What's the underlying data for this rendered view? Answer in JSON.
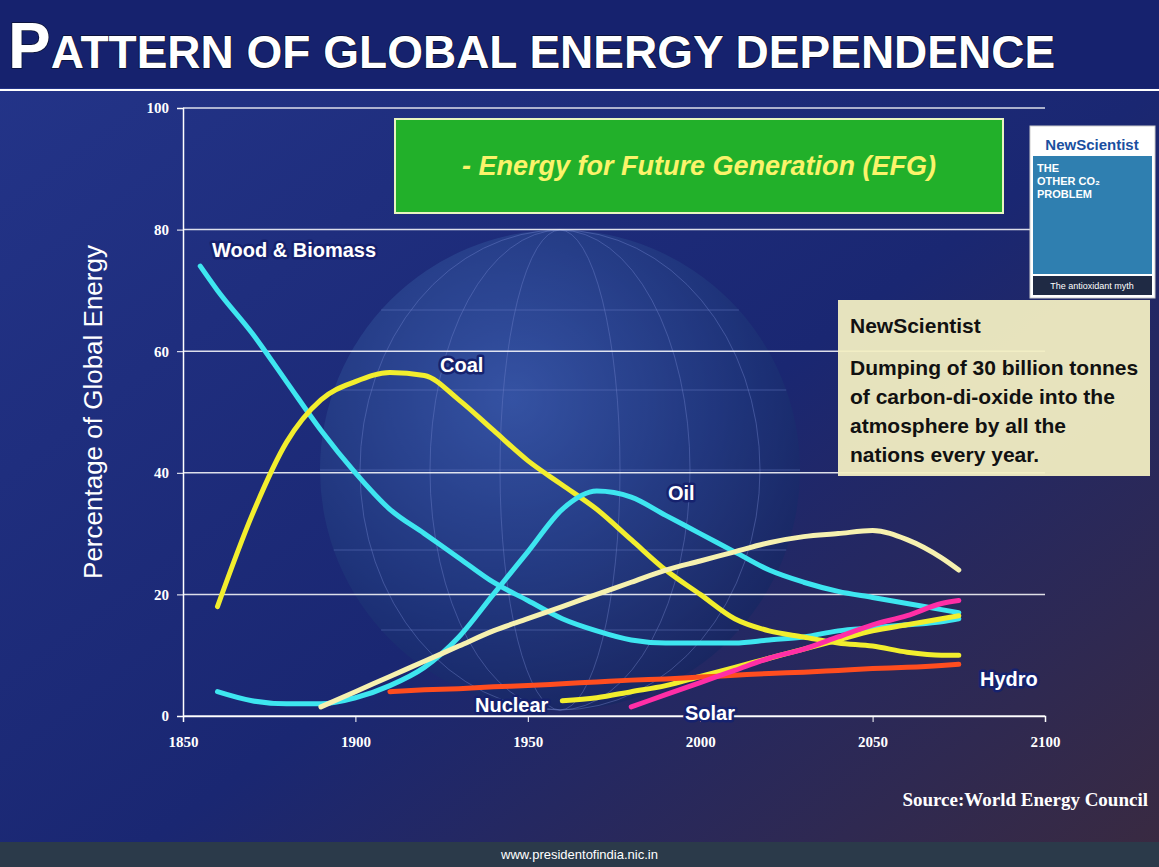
{
  "chart_data": {
    "type": "line",
    "title": "PATTERN OF GLOBAL ENERGY DEPENDENCE",
    "subtitle": "- Energy for Future Generation (EFG)",
    "y_label": "Percentage of Global Energy",
    "source": "Source:World Energy Council",
    "footer": "www.presidentofindia.nic.in",
    "annotation": {
      "heading": "NewScientist",
      "text": "Dumping of 30 billion tonnes of carbon-di-oxide into the atmosphere by all the nations every year."
    },
    "cover": {
      "title": "NewScientist",
      "lines": [
        "THE",
        "OTHER CO₂",
        "PROBLEM"
      ],
      "caption": "The antioxidant myth"
    },
    "x": [
      1855,
      1860,
      1870,
      1880,
      1890,
      1900,
      1910,
      1920,
      1930,
      1940,
      1950,
      1960,
      1970,
      1980,
      1990,
      2000,
      2010,
      2020,
      2030,
      2040,
      2050,
      2060,
      2070,
      2075
    ],
    "xlim": [
      1850,
      2100
    ],
    "xticks": [
      1850,
      1900,
      1950,
      2000,
      2050,
      2100
    ],
    "ylim": [
      0,
      100
    ],
    "yticks": [
      0,
      20,
      40,
      60,
      80,
      100
    ],
    "grid": true,
    "series": [
      {
        "name": "Wood & Biomass",
        "color": "#3ee6f0",
        "values": [
          74,
          70,
          63,
          55,
          47,
          40,
          34,
          30,
          26,
          22,
          19,
          16,
          14,
          12.5,
          12,
          12,
          12,
          12.5,
          13,
          14,
          14.5,
          15,
          15.5,
          16
        ]
      },
      {
        "name": "Coal",
        "color": "#f2ee2e",
        "values": [
          null,
          18,
          33,
          45,
          52,
          55,
          56.5,
          56,
          52,
          47,
          42,
          38,
          34,
          29,
          24,
          20,
          16,
          14,
          13,
          12,
          11.5,
          10.5,
          10,
          10
        ]
      },
      {
        "name": "Oil",
        "color": "#3ee6f0",
        "values": [
          null,
          4,
          2.5,
          2,
          2,
          3,
          5,
          8,
          13,
          20,
          27,
          34,
          37,
          36,
          33,
          30,
          27,
          24,
          22,
          20.5,
          19.5,
          18.5,
          17.5,
          17
        ]
      },
      {
        "color": "#f6f1b0",
        "values": [
          null,
          null,
          null,
          null,
          1.5,
          4,
          6.5,
          9,
          11.5,
          14,
          16,
          18,
          20,
          22,
          24,
          25.5,
          27,
          28.5,
          29.5,
          30,
          30.5,
          29,
          26,
          24
        ]
      },
      {
        "name": "Nuclear",
        "color": "#f2ee2e",
        "values": [
          null,
          null,
          null,
          null,
          null,
          null,
          null,
          null,
          null,
          null,
          null,
          2.5,
          3,
          4,
          5,
          6.5,
          8,
          9.5,
          11,
          12.5,
          14,
          15,
          16,
          16.5
        ]
      },
      {
        "name": "Hydro",
        "color": "#ff4d1f",
        "values": [
          null,
          null,
          null,
          null,
          null,
          null,
          4,
          4.3,
          4.5,
          4.8,
          5,
          5.3,
          5.6,
          5.9,
          6.1,
          6.4,
          6.7,
          7,
          7.2,
          7.5,
          7.8,
          8,
          8.3,
          8.5
        ]
      },
      {
        "name": "Solar",
        "color": "#ff2ea6",
        "values": [
          null,
          null,
          null,
          null,
          null,
          null,
          null,
          null,
          null,
          null,
          null,
          null,
          null,
          1.5,
          3.5,
          5.5,
          7.5,
          9.5,
          11,
          13,
          15,
          16.5,
          18.5,
          19
        ]
      }
    ]
  }
}
